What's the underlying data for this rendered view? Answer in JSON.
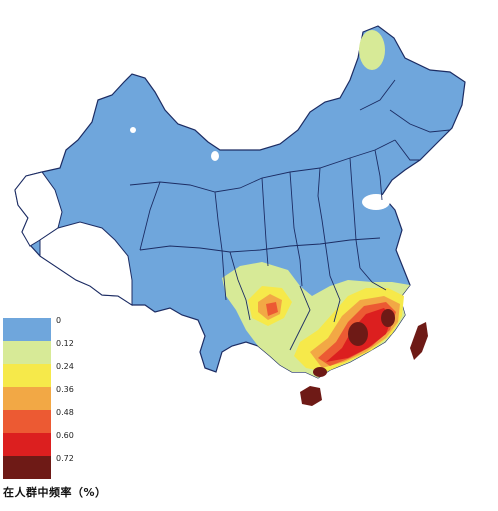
{
  "legend": {
    "title": "在人群中频率（%）",
    "items": [
      {
        "value": "0",
        "color": "#6fa6dc"
      },
      {
        "value": "0.12",
        "color": "#d7ea97"
      },
      {
        "value": "0.24",
        "color": "#f6e94a"
      },
      {
        "value": "0.36",
        "color": "#f2a845"
      },
      {
        "value": "0.48",
        "color": "#ec5a33"
      },
      {
        "value": "0.60",
        "color": "#dc1f1f"
      },
      {
        "value": "0.72",
        "color": "#6e1a16"
      }
    ]
  },
  "colors": {
    "no_data": "#ffffff",
    "border": "#1c2c63"
  }
}
